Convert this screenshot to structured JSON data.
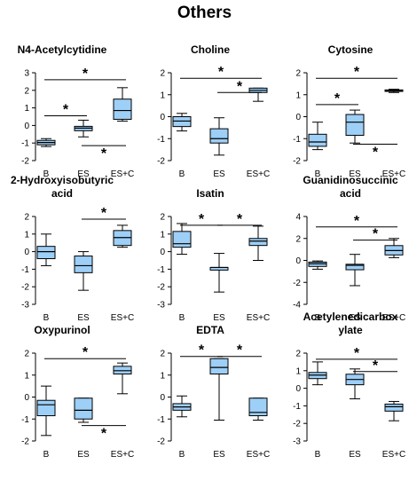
{
  "title": "Others",
  "colors": {
    "box_fill": "#9DCFF7",
    "box_stroke": "#000000",
    "axis": "#000000"
  },
  "chart_data": [
    {
      "type": "box",
      "title_lines": [
        "N4-Acetylcytidine"
      ],
      "ylim": [
        -2,
        3
      ],
      "yticks": [
        -2,
        -1,
        0,
        1,
        2,
        3
      ],
      "categories": [
        "B",
        "ES",
        "ES+C"
      ],
      "boxes": [
        {
          "min": -1.2,
          "q1": -1.1,
          "median": -0.97,
          "q3": -0.85,
          "max": -0.75
        },
        {
          "min": -0.65,
          "q1": -0.3,
          "median": -0.15,
          "q3": -0.05,
          "max": 0.3
        },
        {
          "min": 0.25,
          "q1": 0.35,
          "median": 0.85,
          "q3": 1.5,
          "max": 2.15
        }
      ],
      "significance": [
        {
          "from": "B",
          "to": "ES+C",
          "y": 2.6,
          "label": "*",
          "label_pos": "above"
        },
        {
          "from": "B",
          "to": "ES",
          "y": 0.55,
          "label": "*",
          "label_pos": "above"
        },
        {
          "from": "ES",
          "to": "ES+C",
          "y": -1.15,
          "label": "*",
          "label_pos": "below"
        }
      ]
    },
    {
      "type": "box",
      "title_lines": [
        "Choline"
      ],
      "ylim": [
        -2,
        2
      ],
      "yticks": [
        -2,
        -1,
        0,
        1,
        2
      ],
      "categories": [
        "B",
        "ES",
        "ES+C"
      ],
      "boxes": [
        {
          "min": -0.65,
          "q1": -0.45,
          "median": -0.2,
          "q3": 0.0,
          "max": 0.15
        },
        {
          "min": -1.75,
          "q1": -1.2,
          "median": -1.0,
          "q3": -0.55,
          "max": -0.05
        },
        {
          "min": 0.7,
          "q1": 1.1,
          "median": 1.2,
          "q3": 1.3,
          "max": 1.3
        }
      ],
      "significance": [
        {
          "from": "B",
          "to": "ES+C",
          "y": 1.75,
          "label": "*",
          "label_pos": "above"
        },
        {
          "from": "ES",
          "to": "ES+C",
          "y": 1.1,
          "label": "*",
          "label_pos": "above"
        }
      ]
    },
    {
      "type": "box",
      "title_lines": [
        "Cytosine"
      ],
      "ylim": [
        -2,
        2
      ],
      "yticks": [
        -2,
        -1,
        0,
        1,
        2
      ],
      "categories": [
        "B",
        "ES",
        "ES+C"
      ],
      "boxes": [
        {
          "min": -1.5,
          "q1": -1.35,
          "median": -1.15,
          "q3": -0.8,
          "max": -0.25
        },
        {
          "min": -1.2,
          "q1": -0.85,
          "median": -0.25,
          "q3": 0.1,
          "max": 0.3
        },
        {
          "min": 1.1,
          "q1": 1.15,
          "median": 1.18,
          "q3": 1.22,
          "max": 1.25
        }
      ],
      "significance": [
        {
          "from": "B",
          "to": "ES+C",
          "y": 1.75,
          "label": "*",
          "label_pos": "above"
        },
        {
          "from": "B",
          "to": "ES",
          "y": 0.55,
          "label": "*",
          "label_pos": "above"
        },
        {
          "from": "ES",
          "to": "ES+C",
          "y": -1.25,
          "label": "*",
          "label_pos": "below"
        }
      ]
    },
    {
      "type": "box",
      "title_lines": [
        "2-Hydroxyisobutyric",
        "acid"
      ],
      "ylim": [
        -3,
        2
      ],
      "yticks": [
        -3,
        -2,
        -1,
        0,
        1,
        2
      ],
      "categories": [
        "B",
        "ES",
        "ES+C"
      ],
      "boxes": [
        {
          "min": -0.8,
          "q1": -0.4,
          "median": 0.0,
          "q3": 0.3,
          "max": 1.0
        },
        {
          "min": -2.2,
          "q1": -1.2,
          "median": -0.8,
          "q3": -0.25,
          "max": 0.0
        },
        {
          "min": 0.25,
          "q1": 0.35,
          "median": 0.8,
          "q3": 1.2,
          "max": 1.5
        }
      ],
      "significance": [
        {
          "from": "ES",
          "to": "ES+C",
          "y": 1.85,
          "label": "*",
          "label_pos": "above"
        }
      ]
    },
    {
      "type": "box",
      "title_lines": [
        "Isatin"
      ],
      "ylim": [
        -3,
        2
      ],
      "yticks": [
        -3,
        -2,
        -1,
        0,
        1,
        2
      ],
      "categories": [
        "B",
        "ES",
        "ES+C"
      ],
      "boxes": [
        {
          "min": -0.15,
          "q1": 0.25,
          "median": 0.45,
          "q3": 1.15,
          "max": 1.6
        },
        {
          "min": -2.3,
          "q1": -1.05,
          "median": -0.9,
          "q3": -0.9,
          "max": -0.1
        },
        {
          "min": -0.5,
          "q1": 0.35,
          "median": 0.6,
          "q3": 0.75,
          "max": 1.45
        }
      ],
      "significance": [
        {
          "from": "B",
          "to": "ES",
          "y": 1.5,
          "label": "*",
          "label_pos": "above"
        },
        {
          "from": "ES",
          "to": "ES+C",
          "y": 1.5,
          "label": "*",
          "label_pos": "above"
        }
      ]
    },
    {
      "type": "box",
      "title_lines": [
        "Guanidinosuccinic",
        "acid"
      ],
      "ylim": [
        -4,
        4
      ],
      "yticks": [
        -4,
        -2,
        0,
        2,
        4
      ],
      "categories": [
        "B",
        "ES",
        "ES+C"
      ],
      "boxes": [
        {
          "min": -0.8,
          "q1": -0.55,
          "median": -0.3,
          "q3": -0.15,
          "max": -0.05
        },
        {
          "min": -2.3,
          "q1": -0.85,
          "median": -0.45,
          "q3": -0.35,
          "max": 0.55
        },
        {
          "min": 0.25,
          "q1": 0.5,
          "median": 0.9,
          "q3": 1.35,
          "max": 2.0
        }
      ],
      "significance": [
        {
          "from": "B",
          "to": "ES+C",
          "y": 3.05,
          "label": "*",
          "label_pos": "above"
        },
        {
          "from": "ES",
          "to": "ES+C",
          "y": 1.85,
          "label": "*",
          "label_pos": "above"
        }
      ]
    },
    {
      "type": "box",
      "title_lines": [
        "Oxypurinol"
      ],
      "ylim": [
        -2,
        2
      ],
      "yticks": [
        -2,
        -1,
        0,
        1,
        2
      ],
      "categories": [
        "B",
        "ES",
        "ES+C"
      ],
      "boxes": [
        {
          "min": -1.75,
          "q1": -0.85,
          "median": -0.35,
          "q3": -0.15,
          "max": 0.5
        },
        {
          "min": -1.15,
          "q1": -1.0,
          "median": -0.6,
          "q3": -0.05,
          "max": -0.05
        },
        {
          "min": 0.15,
          "q1": 1.05,
          "median": 1.2,
          "q3": 1.4,
          "max": 1.55
        }
      ],
      "significance": [
        {
          "from": "B",
          "to": "ES+C",
          "y": 1.75,
          "label": "*",
          "label_pos": "above"
        },
        {
          "from": "ES",
          "to": "ES+C",
          "y": -1.3,
          "label": "*",
          "label_pos": "below"
        }
      ]
    },
    {
      "type": "box",
      "title_lines": [
        "EDTA"
      ],
      "ylim": [
        -2,
        2
      ],
      "yticks": [
        -2,
        -1,
        0,
        1,
        2
      ],
      "categories": [
        "B",
        "ES",
        "ES+C"
      ],
      "boxes": [
        {
          "min": -0.9,
          "q1": -0.6,
          "median": -0.45,
          "q3": -0.3,
          "max": 0.05
        },
        {
          "min": -1.05,
          "q1": 1.05,
          "median": 1.35,
          "q3": 1.75,
          "max": 1.75
        },
        {
          "min": -1.05,
          "q1": -0.85,
          "median": -0.7,
          "q3": -0.05,
          "max": -0.05
        }
      ],
      "significance": [
        {
          "from": "B",
          "to": "ES",
          "y": 1.85,
          "label": "*",
          "label_pos": "above"
        },
        {
          "from": "ES",
          "to": "ES+C",
          "y": 1.85,
          "label": "*",
          "label_pos": "above"
        }
      ]
    },
    {
      "type": "box",
      "title_lines": [
        "Acetylenedicarbox",
        "ylate"
      ],
      "ylim": [
        -3,
        2
      ],
      "yticks": [
        -3,
        -2,
        -1,
        0,
        1,
        2
      ],
      "categories": [
        "B",
        "ES",
        "ES+C"
      ],
      "boxes": [
        {
          "min": 0.2,
          "q1": 0.55,
          "median": 0.75,
          "q3": 0.9,
          "max": 1.5
        },
        {
          "min": -0.6,
          "q1": 0.2,
          "median": 0.5,
          "q3": 0.8,
          "max": 1.1
        },
        {
          "min": -1.85,
          "q1": -1.3,
          "median": -1.05,
          "q3": -0.9,
          "max": -0.75
        }
      ],
      "significance": [
        {
          "from": "B",
          "to": "ES+C",
          "y": 1.65,
          "label": "*",
          "label_pos": "above"
        },
        {
          "from": "ES",
          "to": "ES+C",
          "y": 0.95,
          "label": "*",
          "label_pos": "above"
        }
      ]
    }
  ]
}
